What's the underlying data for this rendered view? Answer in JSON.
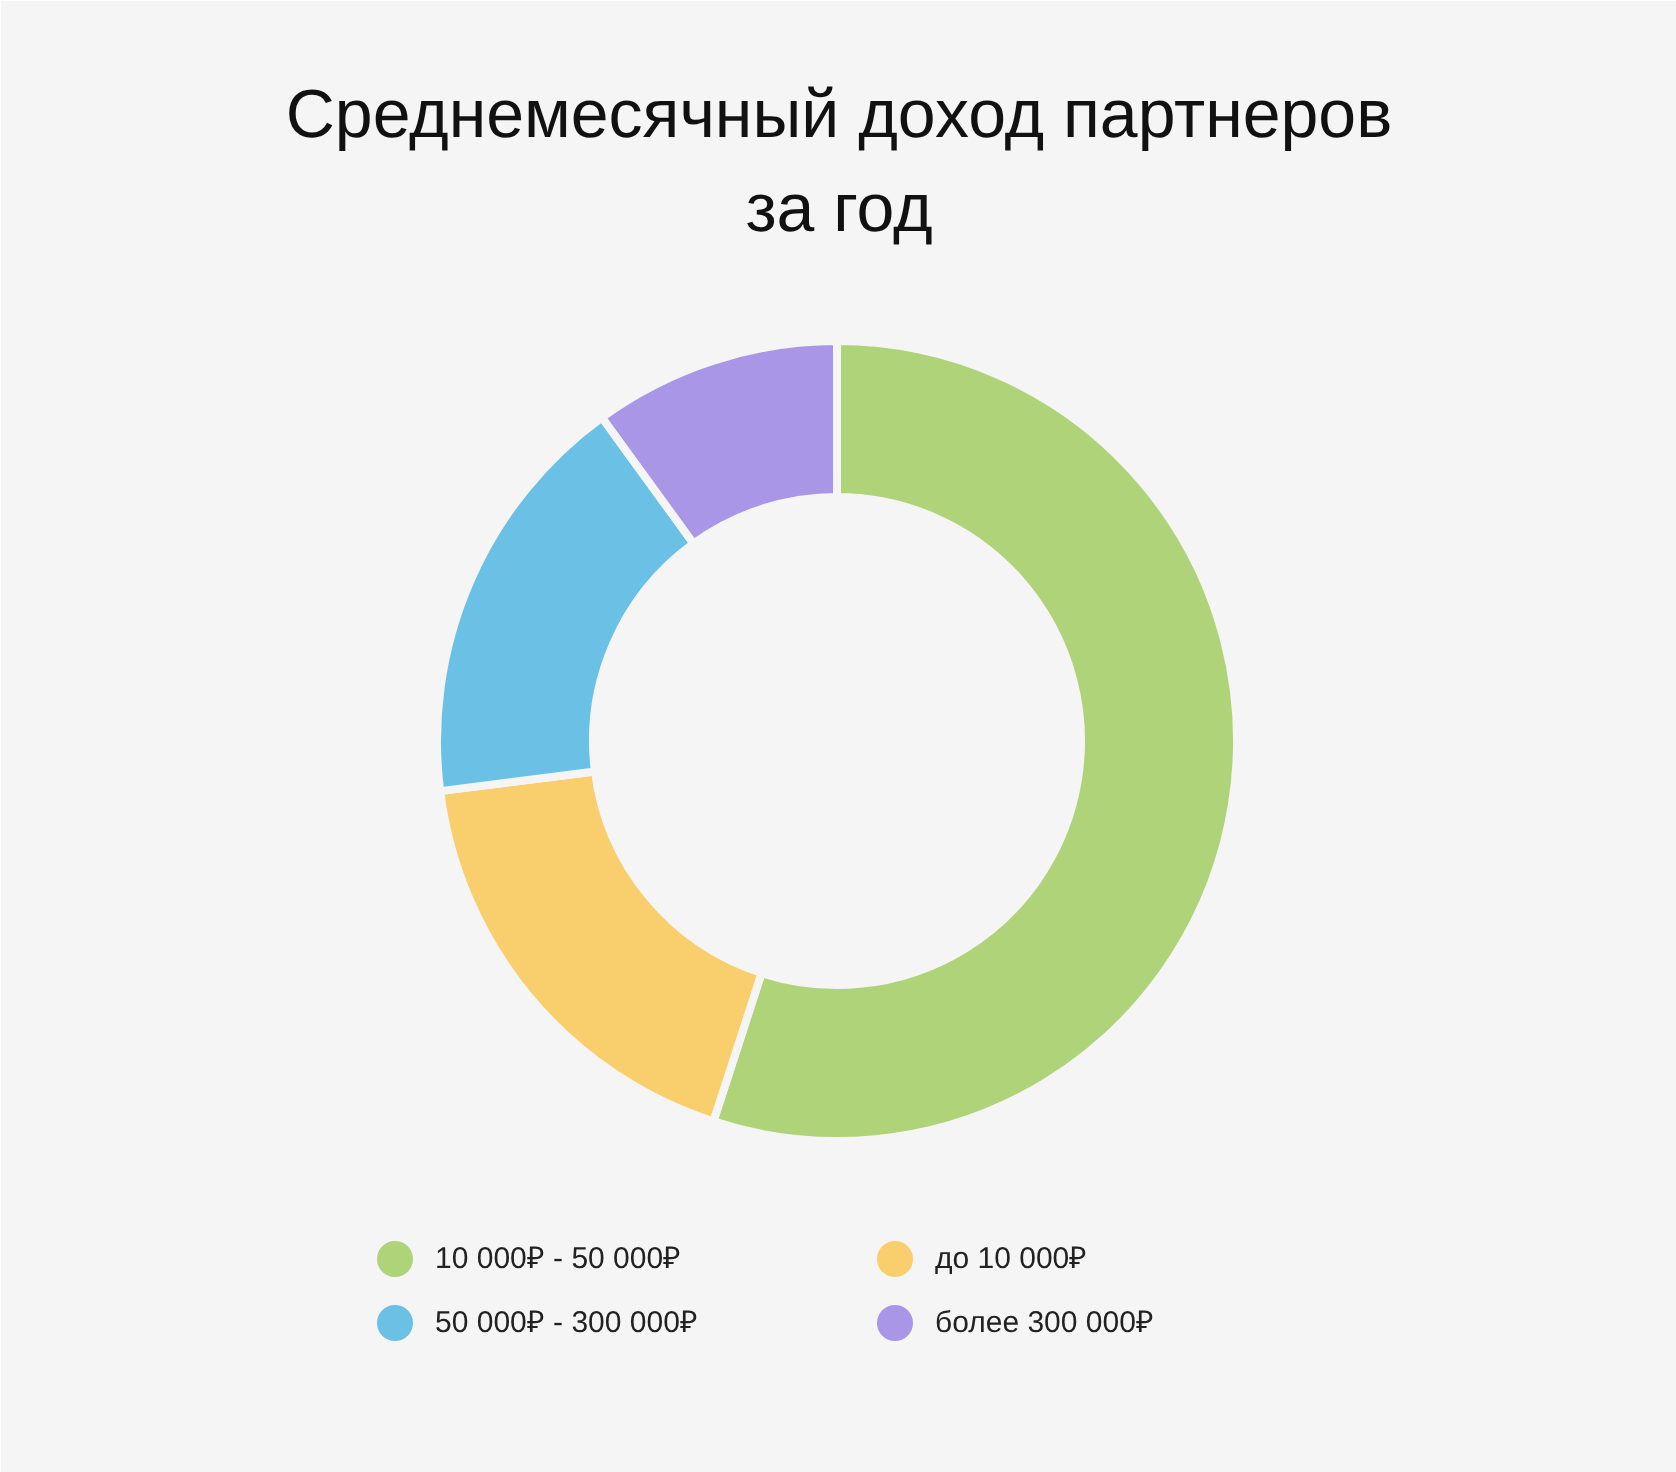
{
  "chart_data": {
    "type": "donut",
    "title": "Среднемесячный доход партнеров за год",
    "categories": [
      "10 000₽ - 50 000₽",
      "до 10 000₽",
      "50 000₽ - 300 000₽",
      "более 300 000₽"
    ],
    "values": [
      55,
      18,
      17,
      10
    ],
    "colors": [
      "#afd379",
      "#f9cf6e",
      "#6bc0e5",
      "#a996e6"
    ],
    "legend": "bottom"
  }
}
